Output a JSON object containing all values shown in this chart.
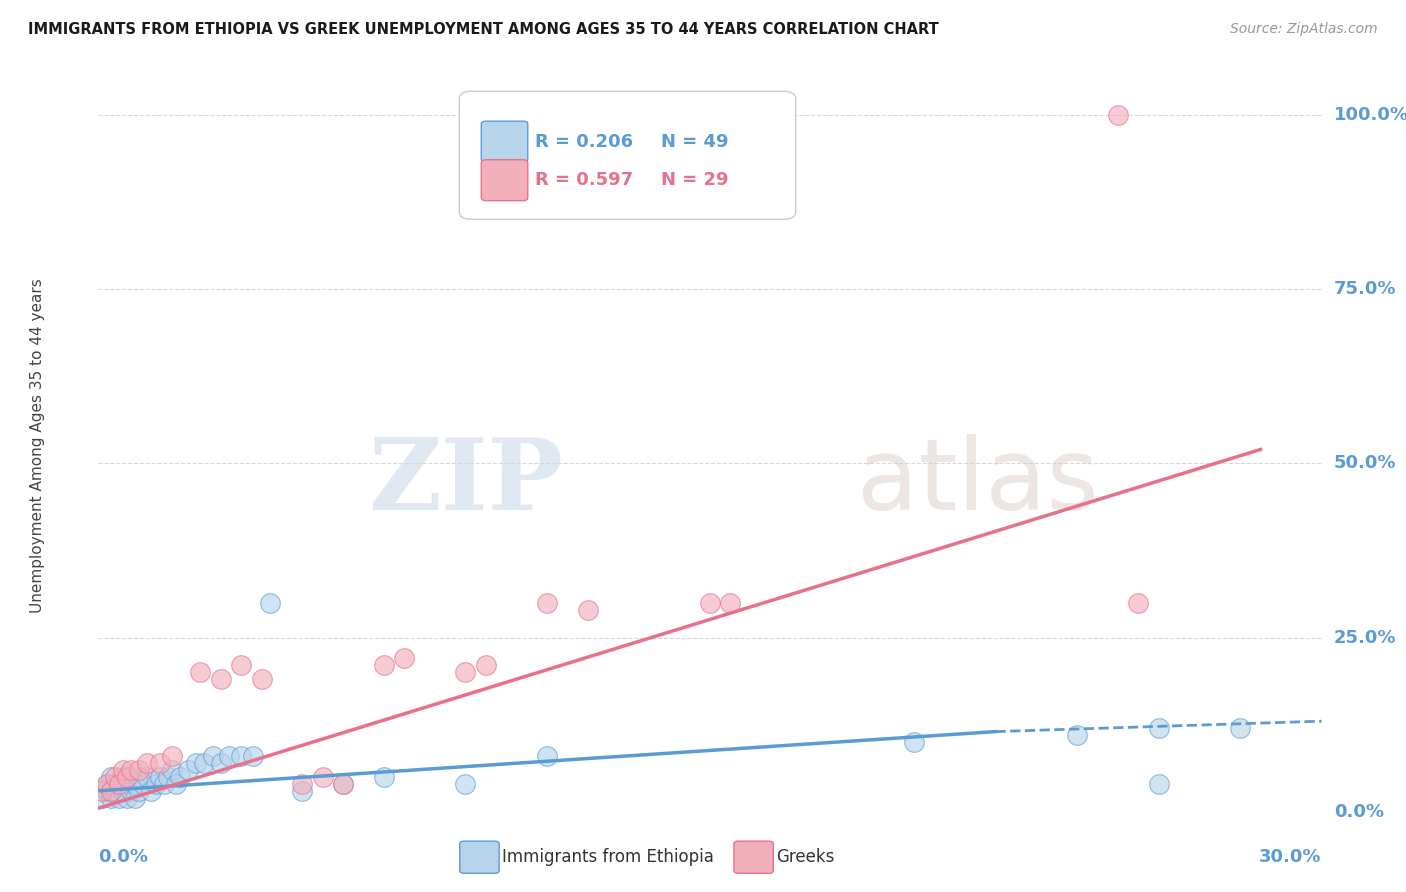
{
  "title": "IMMIGRANTS FROM ETHIOPIA VS GREEK UNEMPLOYMENT AMONG AGES 35 TO 44 YEARS CORRELATION CHART",
  "source": "Source: ZipAtlas.com",
  "ylabel": "Unemployment Among Ages 35 to 44 years",
  "ytick_labels": [
    "0.0%",
    "25.0%",
    "50.0%",
    "75.0%",
    "100.0%"
  ],
  "ytick_values": [
    0.0,
    0.25,
    0.5,
    0.75,
    1.0
  ],
  "legend_entries": [
    {
      "label": "Immigrants from Ethiopia",
      "R": "0.206",
      "N": "49"
    },
    {
      "label": "Greeks",
      "R": "0.597",
      "N": "29"
    }
  ],
  "blue_scatter_x": [
    0.001,
    0.002,
    0.002,
    0.003,
    0.003,
    0.003,
    0.004,
    0.004,
    0.005,
    0.005,
    0.006,
    0.006,
    0.007,
    0.007,
    0.008,
    0.008,
    0.009,
    0.009,
    0.01,
    0.01,
    0.011,
    0.012,
    0.013,
    0.014,
    0.015,
    0.016,
    0.017,
    0.018,
    0.019,
    0.02,
    0.022,
    0.024,
    0.026,
    0.028,
    0.03,
    0.032,
    0.035,
    0.038,
    0.042,
    0.05,
    0.06,
    0.07,
    0.09,
    0.11,
    0.2,
    0.24,
    0.26,
    0.28,
    0.26
  ],
  "blue_scatter_y": [
    0.02,
    0.03,
    0.04,
    0.02,
    0.03,
    0.05,
    0.03,
    0.04,
    0.02,
    0.04,
    0.03,
    0.05,
    0.02,
    0.04,
    0.03,
    0.05,
    0.02,
    0.04,
    0.03,
    0.05,
    0.04,
    0.05,
    0.03,
    0.04,
    0.05,
    0.04,
    0.05,
    0.06,
    0.04,
    0.05,
    0.06,
    0.07,
    0.07,
    0.08,
    0.07,
    0.08,
    0.08,
    0.08,
    0.3,
    0.03,
    0.04,
    0.05,
    0.04,
    0.08,
    0.1,
    0.11,
    0.12,
    0.12,
    0.04
  ],
  "pink_scatter_x": [
    0.001,
    0.002,
    0.003,
    0.004,
    0.005,
    0.006,
    0.007,
    0.008,
    0.01,
    0.012,
    0.015,
    0.018,
    0.025,
    0.03,
    0.035,
    0.04,
    0.05,
    0.055,
    0.06,
    0.07,
    0.075,
    0.09,
    0.095,
    0.11,
    0.12,
    0.15,
    0.155,
    0.25,
    0.255
  ],
  "pink_scatter_y": [
    0.03,
    0.04,
    0.03,
    0.05,
    0.04,
    0.06,
    0.05,
    0.06,
    0.06,
    0.07,
    0.07,
    0.08,
    0.2,
    0.19,
    0.21,
    0.19,
    0.04,
    0.05,
    0.04,
    0.21,
    0.22,
    0.2,
    0.21,
    0.3,
    0.29,
    0.3,
    0.3,
    1.0,
    0.3
  ],
  "background_color": "#ffffff",
  "grid_color": "#d8d8d8",
  "blue_color": "#5b9bd5",
  "blue_scatter_fill": "#b8d4ea",
  "pink_color": "#e8708a",
  "pink_scatter_fill": "#f2b0bc",
  "xlim": [
    0.0,
    0.3
  ],
  "ylim": [
    0.0,
    1.05
  ],
  "watermark_zip": "ZIP",
  "watermark_atlas": "atlas",
  "figsize": [
    14.06,
    8.92
  ],
  "dpi": 100
}
